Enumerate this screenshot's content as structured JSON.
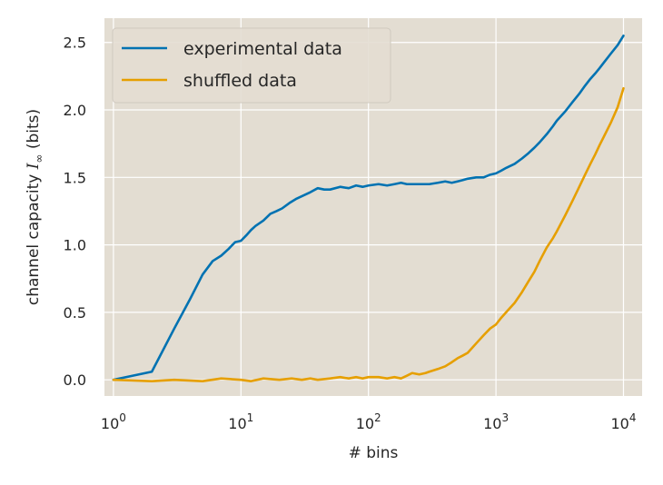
{
  "chart_data": {
    "type": "line",
    "title": "",
    "xlabel": "# bins",
    "ylabel": "channel capacity",
    "ylabel_symbol": "I",
    "ylabel_subscript": "∞",
    "ylabel_units": "(bits)",
    "xscale": "log",
    "xlim": [
      0.85,
      14000
    ],
    "ylim": [
      -0.12,
      2.68
    ],
    "x_ticks": [
      {
        "value": 1,
        "base": "10",
        "exp": "0"
      },
      {
        "value": 10,
        "base": "10",
        "exp": "1"
      },
      {
        "value": 100,
        "base": "10",
        "exp": "2"
      },
      {
        "value": 1000,
        "base": "10",
        "exp": "3"
      },
      {
        "value": 10000,
        "base": "10",
        "exp": "4"
      }
    ],
    "y_ticks": [
      {
        "value": 0.0,
        "label": "0.0"
      },
      {
        "value": 0.5,
        "label": "0.5"
      },
      {
        "value": 1.0,
        "label": "1.0"
      },
      {
        "value": 1.5,
        "label": "1.5"
      },
      {
        "value": 2.0,
        "label": "2.0"
      },
      {
        "value": 2.5,
        "label": "2.5"
      }
    ],
    "grid": true,
    "legend_position": "top-left",
    "colors": {
      "background": "#e3ddd2",
      "grid": "#ffffff",
      "experimental": "#0072b2",
      "shuffled": "#e69f00"
    },
    "series": [
      {
        "name": "experimental data",
        "color": "#0072b2",
        "x": [
          1,
          2,
          3,
          4,
          5,
          6,
          7,
          8,
          9,
          10,
          11,
          12,
          13,
          15,
          17,
          19,
          21,
          24,
          27,
          30,
          35,
          40,
          45,
          50,
          60,
          70,
          80,
          90,
          100,
          120,
          140,
          160,
          180,
          200,
          250,
          300,
          350,
          400,
          450,
          500,
          550,
          600,
          700,
          800,
          900,
          1000,
          1100,
          1200,
          1400,
          1600,
          1800,
          2000,
          2200,
          2500,
          2800,
          3000,
          3500,
          4000,
          4500,
          5000,
          5500,
          6000,
          6500,
          7000,
          8000,
          9000,
          10000
        ],
        "y": [
          0.0,
          0.06,
          0.38,
          0.6,
          0.78,
          0.88,
          0.92,
          0.97,
          1.02,
          1.03,
          1.07,
          1.11,
          1.14,
          1.18,
          1.23,
          1.25,
          1.27,
          1.31,
          1.34,
          1.36,
          1.39,
          1.42,
          1.41,
          1.41,
          1.43,
          1.42,
          1.44,
          1.43,
          1.44,
          1.45,
          1.44,
          1.45,
          1.46,
          1.45,
          1.45,
          1.45,
          1.46,
          1.47,
          1.46,
          1.47,
          1.48,
          1.49,
          1.5,
          1.5,
          1.52,
          1.53,
          1.55,
          1.57,
          1.6,
          1.64,
          1.68,
          1.72,
          1.76,
          1.82,
          1.88,
          1.92,
          1.99,
          2.06,
          2.12,
          2.18,
          2.23,
          2.27,
          2.31,
          2.35,
          2.42,
          2.48,
          2.55
        ]
      },
      {
        "name": "shuffled data",
        "color": "#e69f00",
        "x": [
          1,
          2,
          3,
          5,
          7,
          10,
          12,
          15,
          20,
          25,
          30,
          35,
          40,
          50,
          60,
          70,
          80,
          90,
          100,
          120,
          140,
          160,
          180,
          200,
          220,
          250,
          280,
          300,
          350,
          400,
          450,
          500,
          550,
          600,
          700,
          800,
          900,
          1000,
          1100,
          1200,
          1400,
          1600,
          1800,
          2000,
          2200,
          2500,
          2800,
          3000,
          3500,
          4000,
          4500,
          5000,
          5500,
          6000,
          6500,
          7000,
          8000,
          9000,
          10000
        ],
        "y": [
          0.0,
          -0.01,
          0.0,
          -0.01,
          0.01,
          0.0,
          -0.01,
          0.01,
          0.0,
          0.01,
          0.0,
          0.01,
          0.0,
          0.01,
          0.02,
          0.01,
          0.02,
          0.01,
          0.02,
          0.02,
          0.01,
          0.02,
          0.01,
          0.03,
          0.05,
          0.04,
          0.05,
          0.06,
          0.08,
          0.1,
          0.13,
          0.16,
          0.18,
          0.2,
          0.27,
          0.33,
          0.38,
          0.41,
          0.46,
          0.5,
          0.57,
          0.65,
          0.73,
          0.8,
          0.88,
          0.98,
          1.05,
          1.1,
          1.22,
          1.33,
          1.43,
          1.52,
          1.6,
          1.67,
          1.74,
          1.8,
          1.91,
          2.02,
          2.16
        ]
      }
    ]
  }
}
